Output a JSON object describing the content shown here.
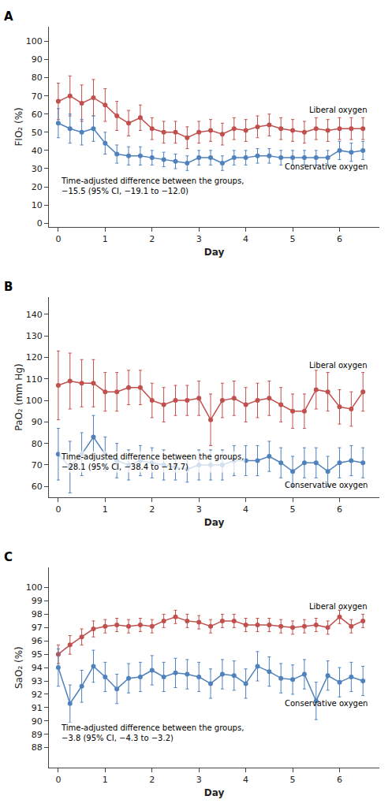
{
  "chart_data": [
    {
      "type": "line",
      "title": "A",
      "xlabel": "Day",
      "ylabel": "FIO₂ (%)",
      "annotations": [
        "Time-adjusted difference between the groups,\n−15.5 (95% CI, −19.1 to −12.0)"
      ],
      "x": [
        0.0,
        0.25,
        0.5,
        0.75,
        1.0,
        1.25,
        1.5,
        1.75,
        2.0,
        2.25,
        2.5,
        2.75,
        3.0,
        3.25,
        3.5,
        3.75,
        4.0,
        4.25,
        4.5,
        4.75,
        5.0,
        5.25,
        5.5,
        5.75,
        6.0,
        6.25,
        6.5
      ],
      "series": [
        {
          "name": "Liberal oxygen",
          "color": "#C0504D",
          "marker": "circle",
          "line_style": "solid",
          "values": [
            67,
            70,
            66,
            69,
            65,
            59,
            55,
            58,
            52,
            50,
            50,
            47,
            50,
            51,
            49,
            52,
            51,
            53,
            54,
            52,
            51,
            50,
            52,
            51,
            52,
            52,
            52
          ],
          "yerr": [
            10,
            11,
            10,
            10,
            9,
            8,
            7,
            7,
            6,
            6,
            6,
            6,
            6,
            6,
            6,
            6,
            6,
            6,
            6,
            6,
            6,
            6,
            6,
            6,
            6,
            6,
            6
          ]
        },
        {
          "name": "Conservative oxygen",
          "color": "#4F81BD",
          "marker": "circle",
          "line_style": "solid",
          "values": [
            55,
            52,
            50,
            52,
            44,
            38,
            37,
            37,
            36,
            35,
            34,
            33,
            36,
            36,
            33,
            36,
            36,
            37,
            37,
            36,
            36,
            36,
            36,
            36,
            40,
            39,
            40
          ],
          "yerr": [
            8,
            8,
            7,
            7,
            6,
            5,
            5,
            5,
            4,
            4,
            4,
            4,
            4,
            4,
            4,
            4,
            4,
            4,
            4,
            4,
            4,
            4,
            4,
            4,
            5,
            5,
            5
          ]
        }
      ],
      "xlim": [
        -0.2,
        6.85
      ],
      "xticks": [
        0,
        1,
        2,
        3,
        4,
        5,
        6
      ],
      "ylim": [
        -2,
        108
      ],
      "yticks": [
        0,
        10,
        20,
        30,
        40,
        50,
        60,
        70,
        80,
        90,
        100
      ],
      "grid": false
    },
    {
      "type": "line",
      "title": "B",
      "xlabel": "Day",
      "ylabel": "PaO₂ (mm Hg)",
      "annotations": [
        "Time-adjusted difference between the groups,\n−28.1 (95% CI, −38.4 to −17.7)"
      ],
      "x": [
        0.0,
        0.25,
        0.5,
        0.75,
        1.0,
        1.25,
        1.5,
        1.75,
        2.0,
        2.25,
        2.5,
        2.75,
        3.0,
        3.25,
        3.5,
        3.75,
        4.0,
        4.25,
        4.5,
        4.75,
        5.0,
        5.25,
        5.5,
        5.75,
        6.0,
        6.25,
        6.5
      ],
      "series": [
        {
          "name": "Liberal oxygen",
          "color": "#C0504D",
          "marker": "circle",
          "line_style": "solid",
          "values": [
            107,
            109,
            108,
            108,
            104,
            104,
            106,
            106,
            100,
            98,
            100,
            100,
            101,
            91,
            100,
            101,
            98,
            100,
            101,
            98,
            95,
            95,
            105,
            104,
            97,
            96,
            104
          ],
          "yerr": [
            16,
            13,
            11,
            11,
            9,
            9,
            8,
            8,
            8,
            8,
            7,
            7,
            8,
            12,
            8,
            8,
            8,
            8,
            8,
            8,
            8,
            8,
            9,
            9,
            8,
            8,
            9
          ]
        },
        {
          "name": "Conservative oxygen",
          "color": "#4F81BD",
          "marker": "circle",
          "line_style": "solid",
          "values": [
            75,
            69,
            75,
            83,
            75,
            72,
            70,
            72,
            71,
            70,
            69,
            68,
            70,
            70,
            70,
            72,
            72,
            72,
            74,
            71,
            67,
            71,
            71,
            67,
            71,
            72,
            71
          ],
          "yerr": [
            12,
            12,
            10,
            10,
            8,
            8,
            7,
            7,
            7,
            7,
            6,
            6,
            7,
            7,
            7,
            7,
            7,
            7,
            7,
            7,
            7,
            7,
            7,
            7,
            7,
            7,
            7
          ]
        }
      ],
      "xlim": [
        -0.2,
        6.85
      ],
      "xticks": [
        0,
        1,
        2,
        3,
        4,
        5,
        6
      ],
      "ylim": [
        55,
        148
      ],
      "yticks": [
        60,
        70,
        80,
        90,
        100,
        110,
        120,
        130,
        140
      ],
      "grid": false
    },
    {
      "type": "line",
      "title": "C",
      "xlabel": "Day",
      "ylabel": "SaO₂ (%)",
      "annotations": [
        "Time-adjusted difference between the groups,\n−3.8 (95% CI, −4.3 to −3.2)"
      ],
      "x": [
        0.0,
        0.25,
        0.5,
        0.75,
        1.0,
        1.25,
        1.5,
        1.75,
        2.0,
        2.25,
        2.5,
        2.75,
        3.0,
        3.25,
        3.5,
        3.75,
        4.0,
        4.25,
        4.5,
        4.75,
        5.0,
        5.25,
        5.5,
        5.75,
        6.0,
        6.25,
        6.5
      ],
      "series": [
        {
          "name": "Liberal oxygen",
          "color": "#C0504D",
          "marker": "circle",
          "line_style": "solid",
          "values": [
            95.0,
            95.7,
            96.3,
            96.9,
            97.1,
            97.2,
            97.1,
            97.2,
            97.1,
            97.5,
            97.8,
            97.5,
            97.4,
            97.1,
            97.5,
            97.5,
            97.2,
            97.2,
            97.2,
            97.1,
            97.0,
            97.1,
            97.2,
            97.0,
            97.8,
            97.1,
            97.5
          ],
          "yerr": [
            0.7,
            0.7,
            0.6,
            0.6,
            0.5,
            0.5,
            0.5,
            0.5,
            0.5,
            0.5,
            0.5,
            0.5,
            0.5,
            0.5,
            0.5,
            0.5,
            0.5,
            0.5,
            0.5,
            0.5,
            0.5,
            0.5,
            0.5,
            0.5,
            0.5,
            0.5,
            0.5
          ]
        },
        {
          "name": "Conservative oxygen",
          "color": "#4F81BD",
          "marker": "circle",
          "line_style": "solid",
          "values": [
            94.0,
            91.3,
            92.6,
            94.1,
            93.3,
            92.4,
            93.2,
            93.3,
            93.8,
            93.3,
            93.6,
            93.5,
            93.3,
            92.8,
            93.5,
            93.4,
            92.8,
            94.1,
            93.7,
            93.2,
            93.1,
            93.5,
            91.5,
            93.4,
            92.9,
            93.3,
            93.0
          ],
          "yerr": [
            1.4,
            1.4,
            1.2,
            1.2,
            1.1,
            1.1,
            1.1,
            1.1,
            1.1,
            1.1,
            1.1,
            1.1,
            1.1,
            1.1,
            1.1,
            1.1,
            1.1,
            1.1,
            1.1,
            1.1,
            1.1,
            1.1,
            1.4,
            1.1,
            1.1,
            1.1,
            1.1
          ]
        }
      ],
      "xlim": [
        -0.2,
        6.85
      ],
      "xticks": [
        0,
        1,
        2,
        3,
        4,
        5,
        6
      ],
      "ylim": [
        86.5,
        101.5
      ],
      "yticks": [
        88,
        89,
        90,
        91,
        92,
        93,
        94,
        95,
        96,
        97,
        98,
        99,
        100
      ],
      "grid": false
    }
  ]
}
